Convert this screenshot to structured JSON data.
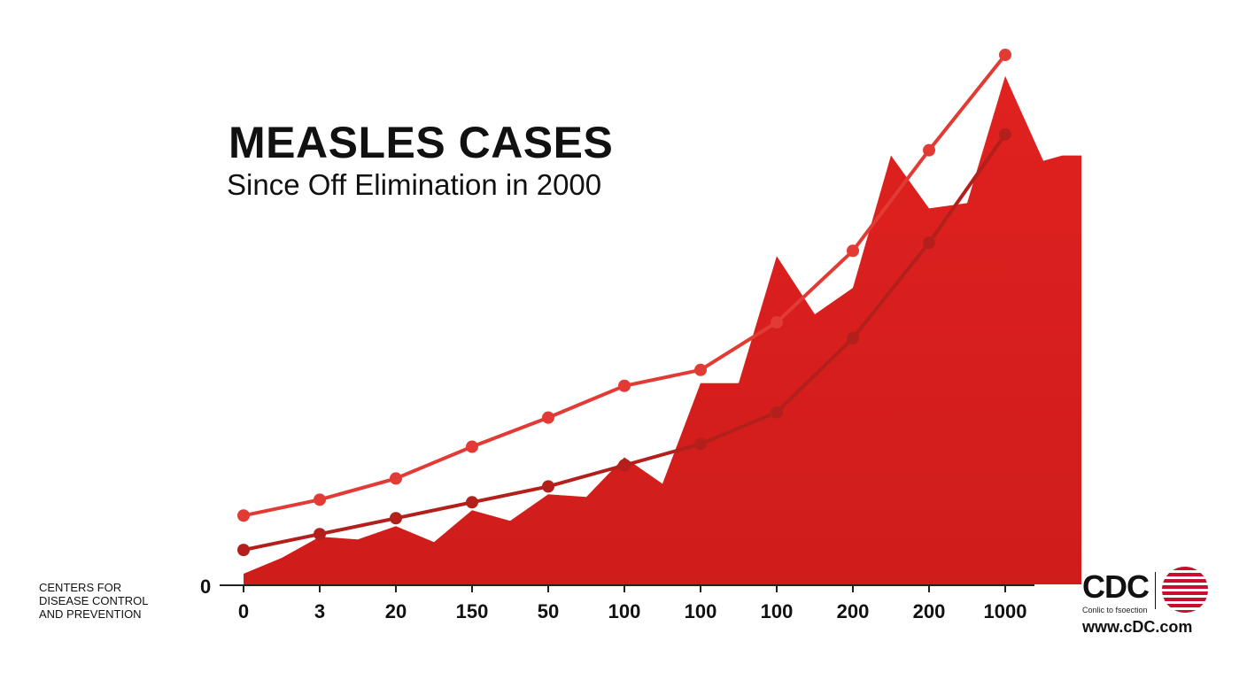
{
  "title": "MEASLES CASES",
  "subtitle": "Since Off Elimination in 2000",
  "organization": {
    "lines": [
      "CENTERS FOR",
      "DISEASE CONTROL",
      "AND PREVENTION"
    ]
  },
  "logo": {
    "wordmark": "CDC",
    "tagline": "Conlic to fsoection",
    "url": "www.cDC.com",
    "icon": "striped-circle-icon",
    "stripe_color": "#c8102e"
  },
  "colors": {
    "area": "#e0211f",
    "series_top": "#e23a35",
    "series_bottom": "#b3201c",
    "axis": "#222222"
  },
  "chart_data": {
    "type": "area",
    "title": "MEASLES CASES",
    "subtitle": "Since Off Elimination in 2000",
    "xlabel": "",
    "ylabel": "",
    "y_tick_labels": [
      "0"
    ],
    "ylim": [
      0,
      100
    ],
    "grid": false,
    "legend": "none",
    "categories": [
      "0",
      "3",
      "20",
      "150",
      "50",
      "100",
      "100",
      "100",
      "200",
      "200",
      "1000"
    ],
    "area_series": {
      "x": [
        0,
        0.5,
        1,
        1.5,
        2,
        2.5,
        3,
        3.5,
        4,
        4.5,
        5,
        5.5,
        6,
        6.5,
        7,
        7.5,
        8,
        8.5,
        9,
        9.5,
        10,
        10.5,
        10.75,
        10.9,
        11
      ],
      "values": [
        2,
        5,
        9,
        8.5,
        11,
        8,
        14,
        12,
        17,
        16.5,
        24,
        19,
        38,
        38,
        62,
        51,
        56,
        81,
        71,
        72,
        96,
        80,
        81,
        81,
        81
      ]
    },
    "series": [
      {
        "values": [
          13,
          16,
          20,
          26,
          31.5,
          37.5,
          40.5,
          49.5,
          63,
          82,
          100
        ]
      },
      {
        "values": [
          6.5,
          9.5,
          12.5,
          15.5,
          18.5,
          22.5,
          26.5,
          32.5,
          46.5,
          64.5,
          85
        ]
      }
    ]
  }
}
